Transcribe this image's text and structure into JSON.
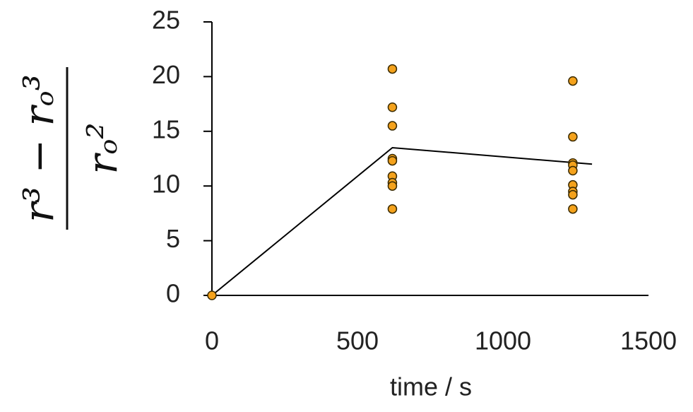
{
  "chart_data": {
    "type": "scatter",
    "xlabel": "time / s",
    "ylabel_numerator": "r³ − rₒ³",
    "ylabel_denominator": "rₒ²",
    "xlim": [
      0,
      1500
    ],
    "xticks": [
      0,
      500,
      1000,
      1500
    ],
    "ylim": [
      0,
      25
    ],
    "yticks": [
      0,
      5,
      10,
      15,
      20,
      25
    ],
    "series": [
      {
        "type": "scatter",
        "color": "#f4a21c",
        "x": [
          0,
          620,
          620,
          620,
          620,
          620,
          620,
          620,
          620,
          620,
          1240,
          1240,
          1240,
          1240,
          1240,
          1240,
          1240,
          1240,
          1240
        ],
        "values": [
          0,
          20.7,
          17.2,
          15.5,
          12.5,
          12.3,
          10.9,
          10.3,
          10.0,
          7.9,
          19.6,
          14.5,
          12.1,
          11.9,
          11.4,
          10.1,
          9.5,
          9.2,
          7.9
        ]
      },
      {
        "type": "line",
        "color": "#000000",
        "x": [
          0,
          620,
          1306
        ],
        "values": [
          0,
          13.5,
          12.0
        ]
      }
    ]
  }
}
